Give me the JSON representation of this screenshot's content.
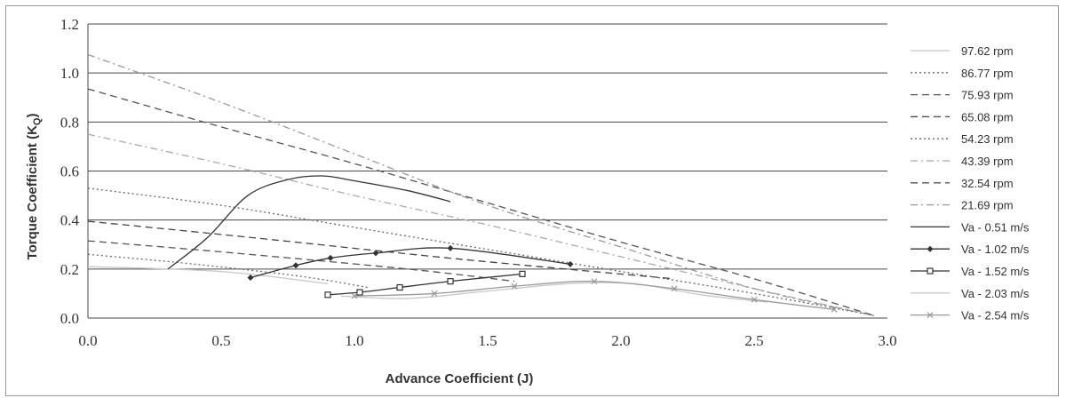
{
  "chart_data": {
    "type": "line",
    "title": "",
    "xlabel": "Advance Coefficient (J)",
    "ylabel": {
      "main": "Torque Coefficient (K",
      "sub": "Q",
      "close": ")"
    },
    "xlim": [
      0,
      3
    ],
    "ylim": [
      0,
      1.2
    ],
    "xticks": [
      "0.0",
      "0.5",
      "1.0",
      "1.5",
      "2.0",
      "2.5",
      "3.0"
    ],
    "yticks": [
      "0.0",
      "0.2",
      "0.4",
      "0.6",
      "0.8",
      "1.0",
      "1.2"
    ],
    "grid": "horizontal",
    "legend_position": "right",
    "series": [
      {
        "name": "97.62 rpm",
        "color": "#c8c8c8",
        "dash": "solid",
        "marker": "none",
        "x": [
          0,
          0.5,
          0.9
        ],
        "y": [
          0.21,
          0.19,
          0.14
        ]
      },
      {
        "name": "86.77 rpm",
        "color": "#6a6a6a",
        "dash": "dot",
        "marker": "none",
        "x": [
          0,
          0.4,
          0.8,
          1.05
        ],
        "y": [
          0.26,
          0.22,
          0.17,
          0.125
        ]
      },
      {
        "name": "75.93 rpm",
        "color": "#555555",
        "dash": "dash",
        "marker": "none",
        "x": [
          0,
          0.5,
          1.2,
          1.6
        ],
        "y": [
          0.315,
          0.27,
          0.2,
          0.15
        ]
      },
      {
        "name": "65.08 rpm",
        "color": "#444444",
        "dash": "dash",
        "marker": "none",
        "x": [
          0,
          0.6,
          1.4,
          2.2
        ],
        "y": [
          0.395,
          0.33,
          0.24,
          0.16
        ]
      },
      {
        "name": "54.23 rpm",
        "color": "#666666",
        "dash": "dot",
        "marker": "none",
        "x": [
          0,
          0.5,
          1.0,
          1.5,
          2.0,
          2.5,
          2.95
        ],
        "y": [
          0.53,
          0.46,
          0.37,
          0.28,
          0.19,
          0.1,
          0.01
        ]
      },
      {
        "name": "43.39 rpm",
        "color": "#a8a8a8",
        "dash": "dashdot",
        "marker": "none",
        "x": [
          0,
          0.5,
          1.0,
          1.5,
          2.0,
          2.5,
          2.95
        ],
        "y": [
          0.75,
          0.63,
          0.5,
          0.38,
          0.25,
          0.12,
          0.01
        ]
      },
      {
        "name": "32.54 rpm",
        "color": "#555555",
        "dash": "dash",
        "marker": "none",
        "x": [
          0,
          0.5,
          1.0,
          1.5,
          2.0,
          2.5,
          2.95
        ],
        "y": [
          0.935,
          0.78,
          0.63,
          0.47,
          0.31,
          0.16,
          0.01
        ]
      },
      {
        "name": "21.69 rpm",
        "color": "#999999",
        "dash": "dashdot",
        "marker": "none",
        "x": [
          0,
          0.5,
          1.0,
          1.5,
          2.0,
          2.5,
          2.95
        ],
        "y": [
          1.075,
          0.88,
          0.67,
          0.46,
          0.29,
          0.12,
          0.01
        ]
      },
      {
        "name": "Va - 0.51 m/s",
        "color": "#333333",
        "dash": "solid",
        "marker": "none",
        "x": [
          0.3,
          0.45,
          0.6,
          0.75,
          0.88,
          1.0,
          1.2,
          1.36
        ],
        "y": [
          0.2,
          0.33,
          0.5,
          0.565,
          0.58,
          0.56,
          0.52,
          0.475
        ]
      },
      {
        "name": "Va - 1.02 m/s",
        "color": "#333333",
        "dash": "solid",
        "marker": "diamond",
        "x": [
          0.61,
          0.78,
          0.91,
          1.08,
          1.36,
          1.81
        ],
        "y": [
          0.165,
          0.215,
          0.245,
          0.265,
          0.285,
          0.22
        ]
      },
      {
        "name": "Va - 1.52 m/s",
        "color": "#333333",
        "dash": "solid",
        "marker": "square",
        "x": [
          0.9,
          1.02,
          1.17,
          1.36,
          1.63
        ],
        "y": [
          0.095,
          0.105,
          0.125,
          0.15,
          0.18
        ]
      },
      {
        "name": "Va - 2.03 m/s",
        "color": "#c8c8c8",
        "dash": "solid",
        "marker": "none",
        "x": [
          0.95,
          1.2,
          1.5,
          1.8,
          2.05,
          2.3,
          2.55
        ],
        "y": [
          0.09,
          0.08,
          0.11,
          0.14,
          0.14,
          0.095,
          0.065
        ]
      },
      {
        "name": "Va - 2.54 m/s",
        "color": "#999999",
        "dash": "solid",
        "marker": "x",
        "x": [
          1.0,
          1.3,
          1.6,
          1.9,
          2.2,
          2.5,
          2.8
        ],
        "y": [
          0.09,
          0.1,
          0.13,
          0.15,
          0.12,
          0.075,
          0.035
        ]
      }
    ]
  }
}
